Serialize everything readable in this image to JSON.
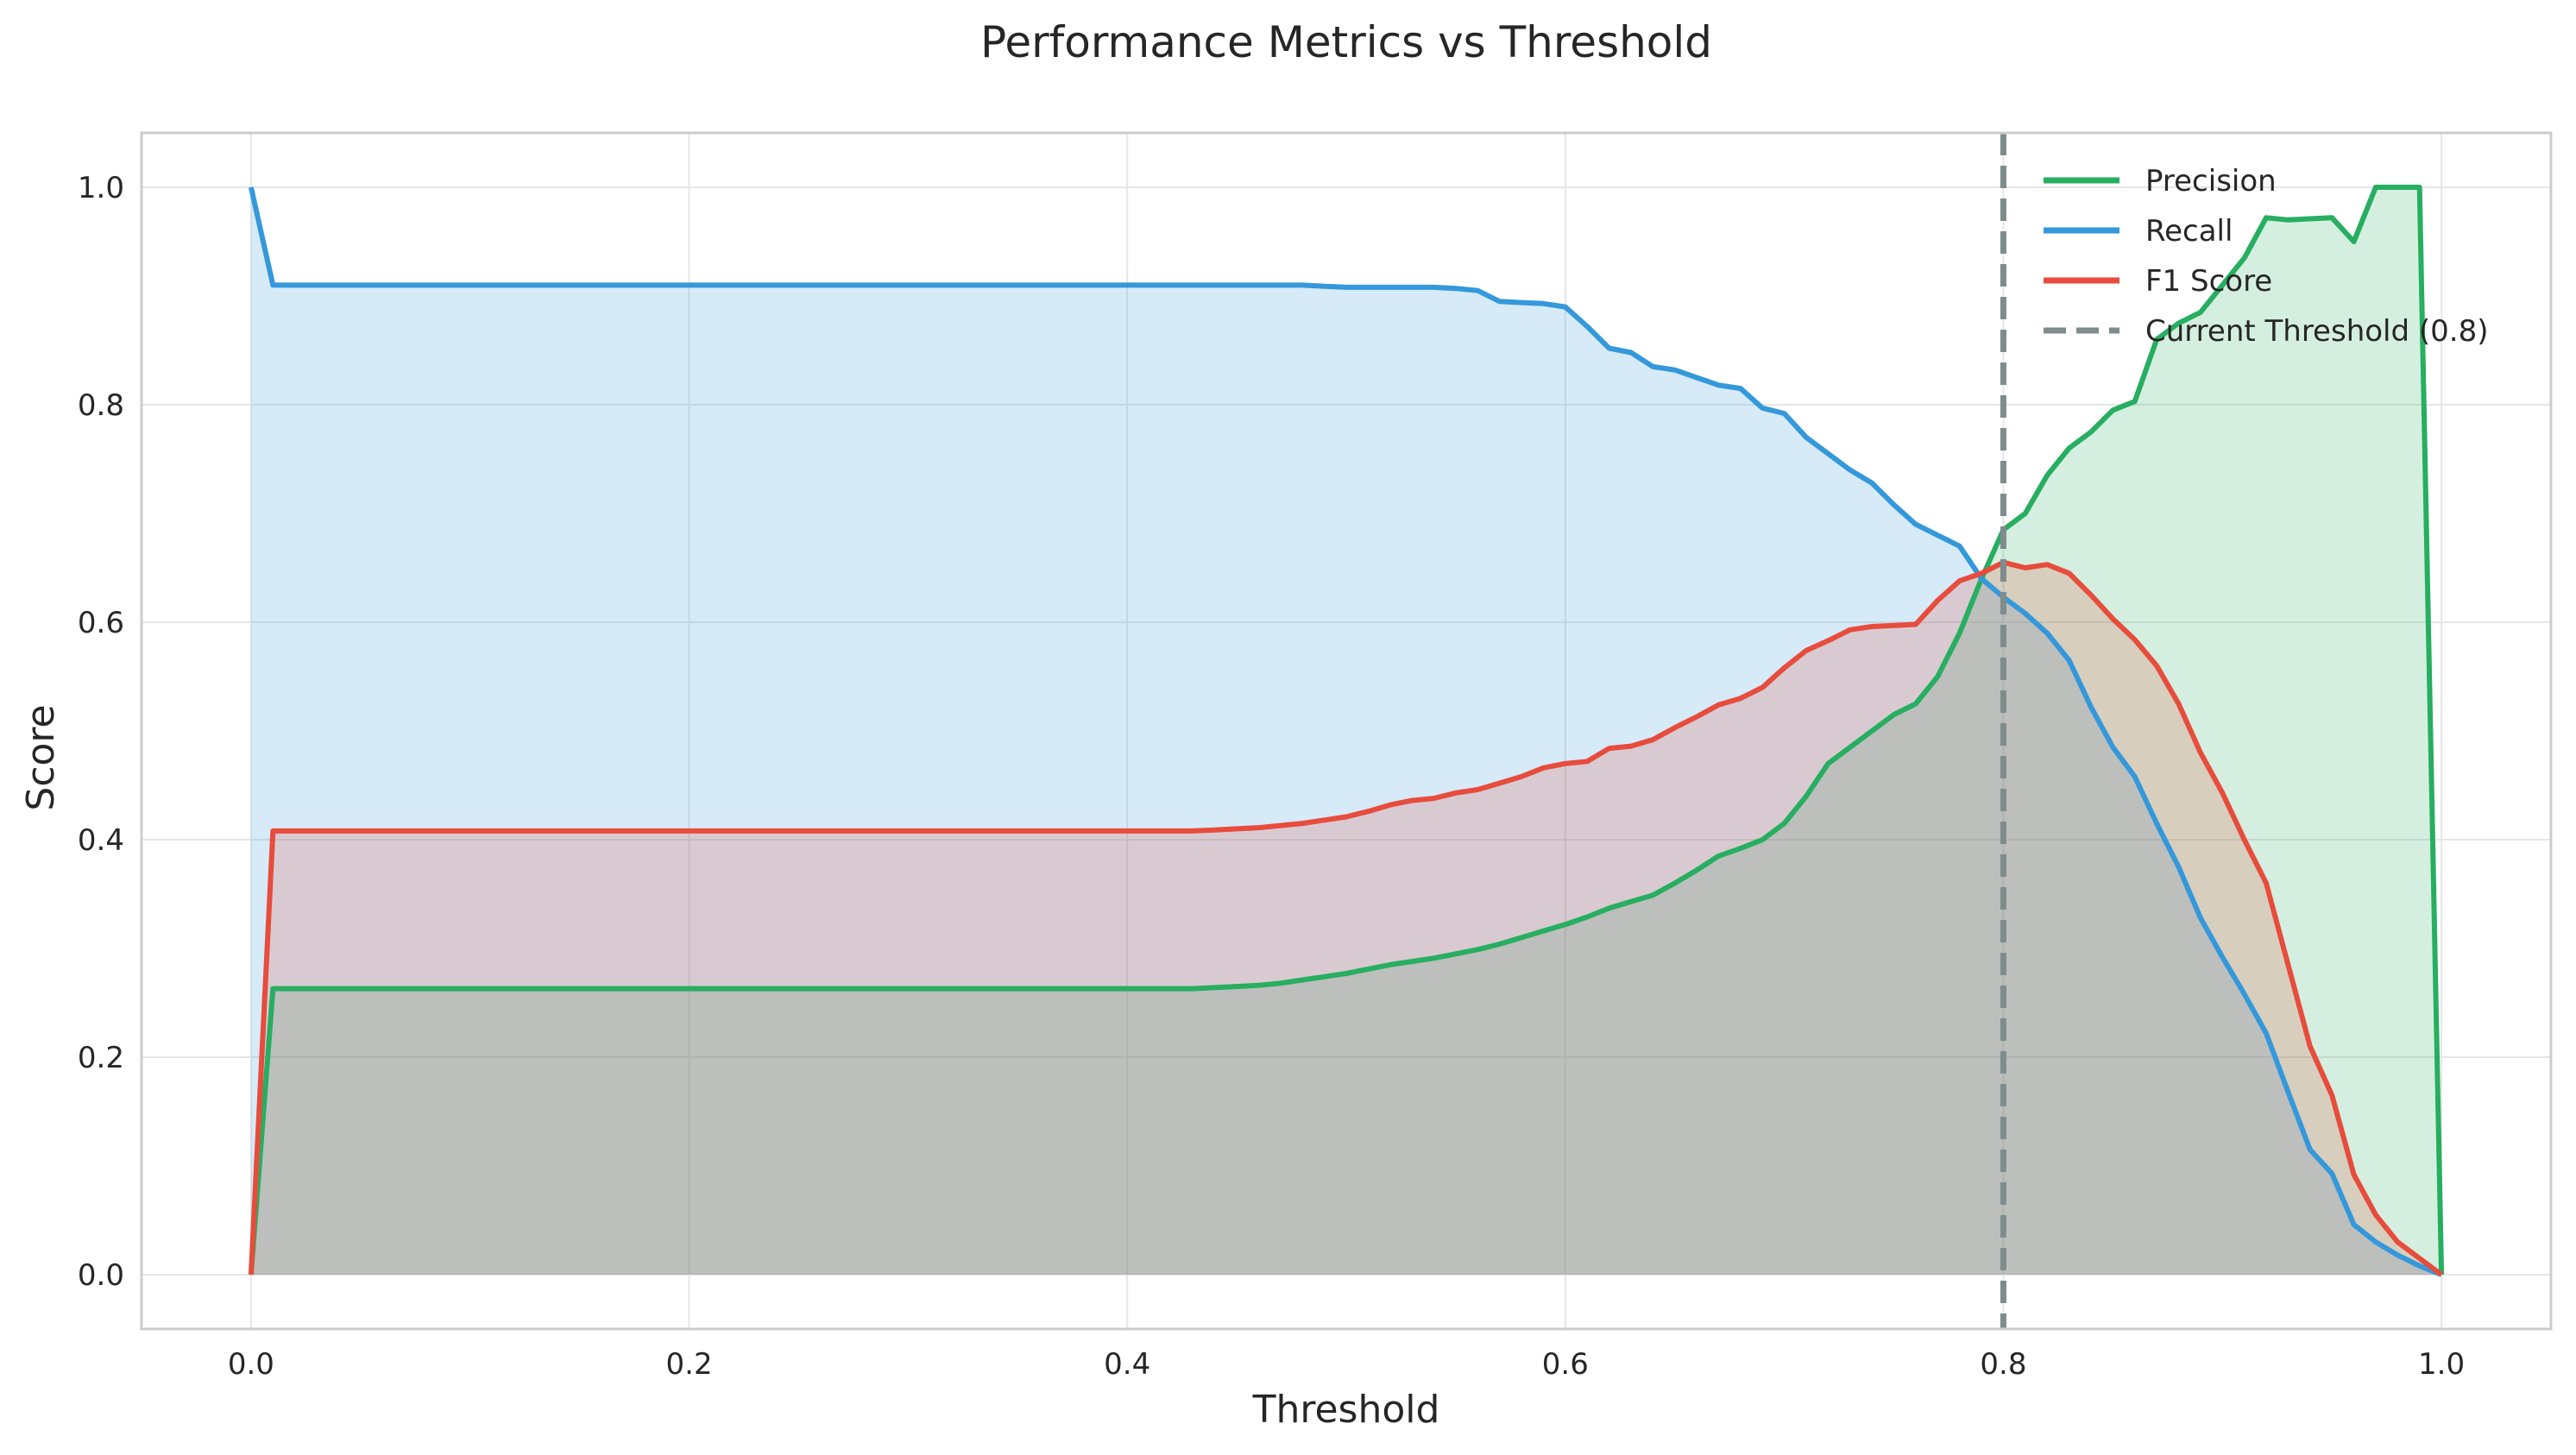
{
  "chart_data": {
    "type": "line",
    "title": "Performance Metrics vs Threshold",
    "xlabel": "Threshold",
    "ylabel": "Score",
    "xlim": [
      -0.05,
      1.05
    ],
    "ylim": [
      -0.05,
      1.05
    ],
    "xticks": [
      0.0,
      0.2,
      0.4,
      0.6,
      0.8,
      1.0
    ],
    "xtick_labels": [
      "0.0",
      "0.2",
      "0.4",
      "0.6",
      "0.8",
      "1.0"
    ],
    "yticks": [
      0.0,
      0.2,
      0.4,
      0.6,
      0.8,
      1.0
    ],
    "ytick_labels": [
      "0.0",
      "0.2",
      "0.4",
      "0.6",
      "0.8",
      "1.0"
    ],
    "grid": true,
    "legend_position": "top-right",
    "fill_under_lines": true,
    "x": [
      0.0,
      0.01,
      0.02,
      0.03,
      0.04,
      0.05,
      0.06,
      0.07,
      0.08,
      0.09,
      0.1,
      0.11,
      0.12,
      0.13,
      0.14,
      0.15,
      0.16,
      0.17,
      0.18,
      0.19,
      0.2,
      0.21,
      0.22,
      0.23,
      0.24,
      0.25,
      0.26,
      0.27,
      0.28,
      0.29,
      0.3,
      0.31,
      0.32,
      0.33,
      0.34,
      0.35,
      0.36,
      0.37,
      0.38,
      0.39,
      0.4,
      0.41,
      0.42,
      0.43,
      0.44,
      0.45,
      0.46,
      0.47,
      0.48,
      0.49,
      0.5,
      0.51,
      0.52,
      0.53,
      0.54,
      0.55,
      0.56,
      0.57,
      0.58,
      0.59,
      0.6,
      0.61,
      0.62,
      0.63,
      0.64,
      0.65,
      0.66,
      0.67,
      0.68,
      0.69,
      0.7,
      0.71,
      0.72,
      0.73,
      0.74,
      0.75,
      0.76,
      0.77,
      0.78,
      0.79,
      0.8,
      0.81,
      0.82,
      0.83,
      0.84,
      0.85,
      0.86,
      0.87,
      0.88,
      0.89,
      0.9,
      0.91,
      0.92,
      0.93,
      0.94,
      0.95,
      0.96,
      0.97,
      0.98,
      0.99,
      1.0
    ],
    "series": [
      {
        "name": "Precision",
        "color": "#27ae60",
        "values": [
          0.0,
          0.263,
          0.263,
          0.263,
          0.263,
          0.263,
          0.263,
          0.263,
          0.263,
          0.263,
          0.263,
          0.263,
          0.263,
          0.263,
          0.263,
          0.263,
          0.263,
          0.263,
          0.263,
          0.263,
          0.263,
          0.263,
          0.263,
          0.263,
          0.263,
          0.263,
          0.263,
          0.263,
          0.263,
          0.263,
          0.263,
          0.263,
          0.263,
          0.263,
          0.263,
          0.263,
          0.263,
          0.263,
          0.263,
          0.263,
          0.263,
          0.263,
          0.263,
          0.263,
          0.264,
          0.265,
          0.266,
          0.268,
          0.271,
          0.274,
          0.277,
          0.281,
          0.285,
          0.288,
          0.291,
          0.295,
          0.299,
          0.304,
          0.31,
          0.316,
          0.322,
          0.329,
          0.337,
          0.343,
          0.349,
          0.36,
          0.372,
          0.385,
          0.392,
          0.4,
          0.415,
          0.44,
          0.47,
          0.485,
          0.5,
          0.515,
          0.525,
          0.55,
          0.59,
          0.64,
          0.685,
          0.7,
          0.735,
          0.76,
          0.775,
          0.795,
          0.803,
          0.86,
          0.875,
          0.885,
          0.91,
          0.935,
          0.972,
          0.97,
          0.971,
          0.972,
          0.95,
          1.0,
          1.0,
          1.0,
          0.0
        ]
      },
      {
        "name": "Recall",
        "color": "#3498db",
        "values": [
          1.0,
          0.91,
          0.91,
          0.91,
          0.91,
          0.91,
          0.91,
          0.91,
          0.91,
          0.91,
          0.91,
          0.91,
          0.91,
          0.91,
          0.91,
          0.91,
          0.91,
          0.91,
          0.91,
          0.91,
          0.91,
          0.91,
          0.91,
          0.91,
          0.91,
          0.91,
          0.91,
          0.91,
          0.91,
          0.91,
          0.91,
          0.91,
          0.91,
          0.91,
          0.91,
          0.91,
          0.91,
          0.91,
          0.91,
          0.91,
          0.91,
          0.91,
          0.91,
          0.91,
          0.91,
          0.91,
          0.91,
          0.91,
          0.91,
          0.909,
          0.908,
          0.908,
          0.908,
          0.908,
          0.908,
          0.907,
          0.905,
          0.895,
          0.894,
          0.893,
          0.89,
          0.872,
          0.852,
          0.848,
          0.835,
          0.832,
          0.825,
          0.818,
          0.815,
          0.797,
          0.792,
          0.77,
          0.755,
          0.74,
          0.728,
          0.708,
          0.69,
          0.68,
          0.67,
          0.64,
          0.623,
          0.608,
          0.59,
          0.565,
          0.522,
          0.485,
          0.458,
          0.415,
          0.375,
          0.328,
          0.292,
          0.258,
          0.222,
          0.168,
          0.115,
          0.093,
          0.046,
          0.03,
          0.018,
          0.008,
          0.0
        ]
      },
      {
        "name": "F1 Score",
        "color": "#e74c3c",
        "values": [
          0.0,
          0.408,
          0.408,
          0.408,
          0.408,
          0.408,
          0.408,
          0.408,
          0.408,
          0.408,
          0.408,
          0.408,
          0.408,
          0.408,
          0.408,
          0.408,
          0.408,
          0.408,
          0.408,
          0.408,
          0.408,
          0.408,
          0.408,
          0.408,
          0.408,
          0.408,
          0.408,
          0.408,
          0.408,
          0.408,
          0.408,
          0.408,
          0.408,
          0.408,
          0.408,
          0.408,
          0.408,
          0.408,
          0.408,
          0.408,
          0.408,
          0.408,
          0.408,
          0.408,
          0.409,
          0.41,
          0.411,
          0.413,
          0.415,
          0.418,
          0.421,
          0.426,
          0.432,
          0.436,
          0.438,
          0.443,
          0.446,
          0.452,
          0.458,
          0.466,
          0.47,
          0.472,
          0.484,
          0.486,
          0.492,
          0.503,
          0.513,
          0.524,
          0.53,
          0.54,
          0.558,
          0.574,
          0.583,
          0.593,
          0.596,
          0.597,
          0.598,
          0.62,
          0.638,
          0.645,
          0.655,
          0.65,
          0.653,
          0.645,
          0.625,
          0.603,
          0.584,
          0.56,
          0.525,
          0.48,
          0.443,
          0.4,
          0.36,
          0.285,
          0.21,
          0.165,
          0.092,
          0.055,
          0.03,
          0.015,
          0.0
        ]
      }
    ],
    "threshold_line": {
      "label": "Current Threshold (0.8)",
      "x": 0.8,
      "color": "#7f8c8d",
      "style": "dashed"
    }
  }
}
